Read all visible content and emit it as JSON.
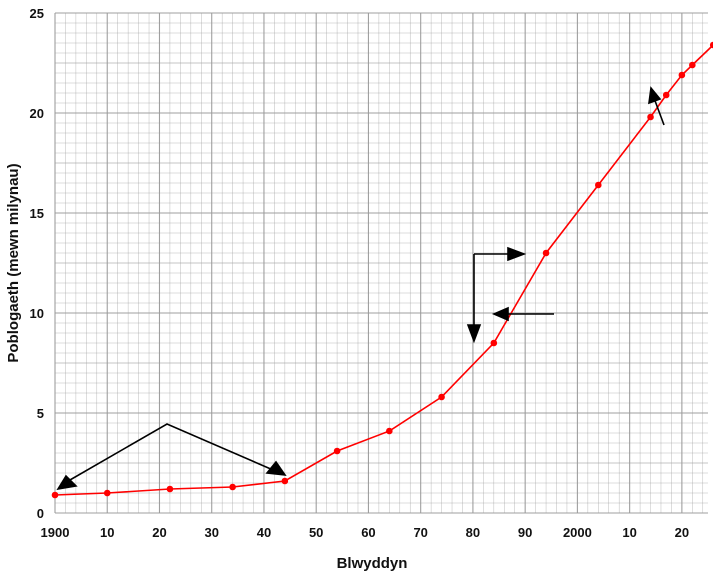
{
  "chart_data": {
    "type": "line",
    "title": "",
    "xlabel": "Blwyddyn",
    "ylabel": "Poblogaeth (mewn milynau)",
    "xlim": [
      1900,
      2025
    ],
    "ylim": [
      0,
      25
    ],
    "x_ticks": [
      {
        "value": 1900,
        "label": "1900"
      },
      {
        "value": 1910,
        "label": "10"
      },
      {
        "value": 1920,
        "label": "20"
      },
      {
        "value": 1930,
        "label": "30"
      },
      {
        "value": 1940,
        "label": "40"
      },
      {
        "value": 1950,
        "label": "50"
      },
      {
        "value": 1960,
        "label": "60"
      },
      {
        "value": 1970,
        "label": "70"
      },
      {
        "value": 1980,
        "label": "80"
      },
      {
        "value": 1990,
        "label": "90"
      },
      {
        "value": 2000,
        "label": "2000"
      },
      {
        "value": 2010,
        "label": "10"
      },
      {
        "value": 2020,
        "label": "20"
      }
    ],
    "y_ticks": [
      {
        "value": 0,
        "label": "0"
      },
      {
        "value": 5,
        "label": "5"
      },
      {
        "value": 10,
        "label": "10"
      },
      {
        "value": 15,
        "label": "15"
      },
      {
        "value": 20,
        "label": "20"
      },
      {
        "value": 25,
        "label": "25"
      }
    ],
    "grid": true,
    "line_color": "#ff0000",
    "point_color": "#ff0000",
    "grid_color": "#9a9a9a",
    "series": [
      {
        "x": [
          1900,
          1910,
          1922,
          1934,
          1944,
          1954,
          1964,
          1974,
          1984,
          1994,
          2004,
          2014,
          2017,
          2020,
          2022,
          2026
        ],
        "y": [
          0.9,
          1.0,
          1.2,
          1.3,
          1.6,
          3.1,
          4.1,
          5.8,
          8.5,
          13.0,
          16.4,
          19.8,
          20.9,
          21.9,
          22.4,
          23.4
        ]
      }
    ],
    "annotations": {
      "note": "black arrows drawn on the chart; no text"
    }
  }
}
